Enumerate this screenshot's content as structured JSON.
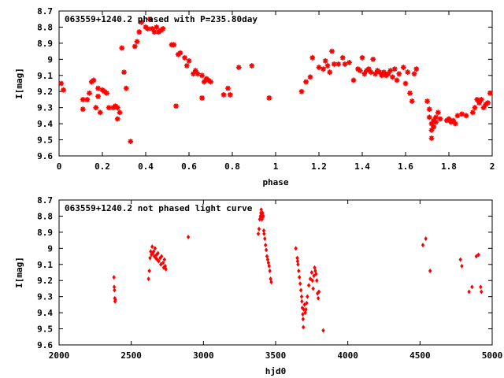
{
  "chart_data": [
    {
      "type": "scatter",
      "title": "063559+1240.2 phased with P=235.80day",
      "xlabel": "phase",
      "ylabel": "I[mag]",
      "xlim": [
        0,
        2
      ],
      "ylim": [
        8.7,
        9.6
      ],
      "y_inverted": true,
      "marker": "star",
      "color": "#ff0000",
      "xticks": [
        "0",
        "0.2",
        "0.4",
        "0.6",
        "0.8",
        "1",
        "1.2",
        "1.4",
        "1.6",
        "1.8",
        "2"
      ],
      "yticks": [
        "8.7",
        "8.8",
        "8.9",
        "9",
        "9.1",
        "9.2",
        "9.3",
        "9.4",
        "9.5",
        "9.6"
      ],
      "points": [
        [
          0.01,
          9.15
        ],
        [
          0.02,
          9.19
        ],
        [
          0.11,
          9.31
        ],
        [
          0.11,
          9.25
        ],
        [
          0.13,
          9.25
        ],
        [
          0.14,
          9.21
        ],
        [
          0.15,
          9.14
        ],
        [
          0.16,
          9.13
        ],
        [
          0.17,
          9.3
        ],
        [
          0.18,
          9.18
        ],
        [
          0.18,
          9.23
        ],
        [
          0.19,
          9.33
        ],
        [
          0.2,
          9.19
        ],
        [
          0.21,
          9.2
        ],
        [
          0.22,
          9.21
        ],
        [
          0.23,
          9.3
        ],
        [
          0.25,
          9.3
        ],
        [
          0.26,
          9.29
        ],
        [
          0.27,
          9.3
        ],
        [
          0.27,
          9.37
        ],
        [
          0.28,
          9.33
        ],
        [
          0.29,
          8.93
        ],
        [
          0.3,
          9.08
        ],
        [
          0.31,
          9.18
        ],
        [
          0.33,
          9.51
        ],
        [
          0.35,
          8.92
        ],
        [
          0.36,
          8.89
        ],
        [
          0.37,
          8.83
        ],
        [
          0.38,
          8.77
        ],
        [
          0.4,
          8.8
        ],
        [
          0.41,
          8.81
        ],
        [
          0.42,
          8.75
        ],
        [
          0.43,
          8.81
        ],
        [
          0.44,
          8.83
        ],
        [
          0.45,
          8.8
        ],
        [
          0.46,
          8.83
        ],
        [
          0.47,
          8.82
        ],
        [
          0.48,
          8.81
        ],
        [
          0.52,
          8.91
        ],
        [
          0.53,
          8.91
        ],
        [
          0.54,
          9.29
        ],
        [
          0.55,
          8.97
        ],
        [
          0.56,
          8.96
        ],
        [
          0.58,
          8.99
        ],
        [
          0.59,
          9.04
        ],
        [
          0.6,
          9.01
        ],
        [
          0.62,
          9.09
        ],
        [
          0.63,
          9.07
        ],
        [
          0.64,
          9.09
        ],
        [
          0.66,
          9.24
        ],
        [
          0.66,
          9.1
        ],
        [
          0.67,
          9.14
        ],
        [
          0.68,
          9.12
        ],
        [
          0.69,
          9.13
        ],
        [
          0.7,
          9.14
        ],
        [
          0.76,
          9.22
        ],
        [
          0.78,
          9.18
        ],
        [
          0.79,
          9.22
        ],
        [
          0.83,
          9.05
        ],
        [
          0.89,
          9.04
        ],
        [
          0.97,
          9.24
        ],
        [
          1.12,
          9.2
        ],
        [
          1.14,
          9.14
        ],
        [
          1.16,
          9.11
        ],
        [
          1.17,
          8.99
        ],
        [
          1.2,
          9.05
        ],
        [
          1.22,
          9.06
        ],
        [
          1.23,
          9.01
        ],
        [
          1.24,
          9.04
        ],
        [
          1.25,
          9.08
        ],
        [
          1.26,
          8.95
        ],
        [
          1.27,
          9.03
        ],
        [
          1.29,
          9.03
        ],
        [
          1.31,
          8.99
        ],
        [
          1.32,
          9.03
        ],
        [
          1.34,
          9.02
        ],
        [
          1.36,
          9.13
        ],
        [
          1.38,
          9.06
        ],
        [
          1.39,
          9.07
        ],
        [
          1.4,
          8.99
        ],
        [
          1.41,
          9.09
        ],
        [
          1.42,
          9.07
        ],
        [
          1.43,
          9.06
        ],
        [
          1.44,
          9.08
        ],
        [
          1.45,
          9.0
        ],
        [
          1.46,
          9.09
        ],
        [
          1.47,
          9.07
        ],
        [
          1.48,
          9.08
        ],
        [
          1.49,
          9.1
        ],
        [
          1.5,
          9.08
        ],
        [
          1.51,
          9.1
        ],
        [
          1.52,
          9.09
        ],
        [
          1.53,
          9.07
        ],
        [
          1.54,
          9.11
        ],
        [
          1.55,
          9.06
        ],
        [
          1.56,
          9.13
        ],
        [
          1.57,
          9.09
        ],
        [
          1.59,
          9.05
        ],
        [
          1.6,
          9.15
        ],
        [
          1.61,
          9.08
        ],
        [
          1.62,
          9.21
        ],
        [
          1.63,
          9.26
        ],
        [
          1.64,
          9.09
        ],
        [
          1.65,
          9.06
        ],
        [
          1.7,
          9.26
        ],
        [
          1.71,
          9.31
        ],
        [
          1.71,
          9.36
        ],
        [
          1.72,
          9.4
        ],
        [
          1.72,
          9.44
        ],
        [
          1.72,
          9.49
        ],
        [
          1.73,
          9.42
        ],
        [
          1.73,
          9.38
        ],
        [
          1.74,
          9.36
        ],
        [
          1.74,
          9.39
        ],
        [
          1.75,
          9.33
        ],
        [
          1.76,
          9.37
        ],
        [
          1.79,
          9.38
        ],
        [
          1.8,
          9.37
        ],
        [
          1.81,
          9.39
        ],
        [
          1.82,
          9.38
        ],
        [
          1.83,
          9.4
        ],
        [
          1.84,
          9.35
        ],
        [
          1.86,
          9.34
        ],
        [
          1.88,
          9.35
        ],
        [
          1.91,
          9.33
        ],
        [
          1.92,
          9.3
        ],
        [
          1.93,
          9.25
        ],
        [
          1.94,
          9.27
        ],
        [
          1.95,
          9.25
        ],
        [
          1.96,
          9.3
        ],
        [
          1.97,
          9.28
        ],
        [
          1.98,
          9.27
        ],
        [
          1.99,
          9.21
        ]
      ]
    },
    {
      "type": "scatter",
      "title": "063559+1240.2 not phased light curve",
      "xlabel": "hjd0",
      "ylabel": "I[mag]",
      "xlim": [
        2000,
        5000
      ],
      "ylim": [
        8.7,
        9.6
      ],
      "y_inverted": true,
      "marker": "diamond",
      "color": "#ff0000",
      "xticks": [
        "2000",
        "2500",
        "3000",
        "3500",
        "4000",
        "4500",
        "5000"
      ],
      "yticks": [
        "8.7",
        "8.8",
        "8.9",
        "9",
        "9.1",
        "9.2",
        "9.3",
        "9.4",
        "9.5",
        "9.6"
      ],
      "points": [
        [
          2380,
          9.18
        ],
        [
          2382,
          9.24
        ],
        [
          2384,
          9.26
        ],
        [
          2386,
          9.31
        ],
        [
          2388,
          9.33
        ],
        [
          2390,
          9.32
        ],
        [
          2620,
          9.19
        ],
        [
          2625,
          9.14
        ],
        [
          2630,
          9.06
        ],
        [
          2635,
          9.02
        ],
        [
          2640,
          9.04
        ],
        [
          2645,
          8.99
        ],
        [
          2650,
          9.03
        ],
        [
          2655,
          9.02
        ],
        [
          2660,
          9.05
        ],
        [
          2665,
          9.0
        ],
        [
          2670,
          9.06
        ],
        [
          2675,
          9.04
        ],
        [
          2680,
          9.07
        ],
        [
          2685,
          9.03
        ],
        [
          2690,
          9.08
        ],
        [
          2700,
          9.06
        ],
        [
          2705,
          9.1
        ],
        [
          2710,
          9.05
        ],
        [
          2720,
          9.09
        ],
        [
          2725,
          9.12
        ],
        [
          2730,
          9.07
        ],
        [
          2735,
          9.11
        ],
        [
          2740,
          9.13
        ],
        [
          2895,
          8.93
        ],
        [
          3380,
          8.91
        ],
        [
          3385,
          8.88
        ],
        [
          3390,
          8.82
        ],
        [
          3395,
          8.8
        ],
        [
          3398,
          8.78
        ],
        [
          3400,
          8.76
        ],
        [
          3402,
          8.79
        ],
        [
          3405,
          8.82
        ],
        [
          3408,
          8.81
        ],
        [
          3410,
          8.78
        ],
        [
          3415,
          8.8
        ],
        [
          3418,
          8.89
        ],
        [
          3420,
          8.91
        ],
        [
          3425,
          8.94
        ],
        [
          3430,
          8.98
        ],
        [
          3435,
          9.01
        ],
        [
          3440,
          9.05
        ],
        [
          3445,
          9.07
        ],
        [
          3450,
          9.09
        ],
        [
          3455,
          9.11
        ],
        [
          3460,
          9.14
        ],
        [
          3465,
          9.19
        ],
        [
          3470,
          9.21
        ],
        [
          3640,
          9.0
        ],
        [
          3650,
          9.06
        ],
        [
          3652,
          9.08
        ],
        [
          3655,
          9.1
        ],
        [
          3660,
          9.14
        ],
        [
          3665,
          9.18
        ],
        [
          3670,
          9.22
        ],
        [
          3675,
          9.26
        ],
        [
          3680,
          9.3
        ],
        [
          3682,
          9.33
        ],
        [
          3685,
          9.37
        ],
        [
          3688,
          9.41
        ],
        [
          3690,
          9.44
        ],
        [
          3692,
          9.49
        ],
        [
          3695,
          9.38
        ],
        [
          3700,
          9.35
        ],
        [
          3705,
          9.4
        ],
        [
          3710,
          9.38
        ],
        [
          3715,
          9.34
        ],
        [
          3720,
          9.3
        ],
        [
          3730,
          9.23
        ],
        [
          3740,
          9.19
        ],
        [
          3750,
          9.15
        ],
        [
          3755,
          9.2
        ],
        [
          3760,
          9.25
        ],
        [
          3765,
          9.17
        ],
        [
          3770,
          9.12
        ],
        [
          3775,
          9.14
        ],
        [
          3780,
          9.16
        ],
        [
          3785,
          9.2
        ],
        [
          3790,
          9.28
        ],
        [
          3795,
          9.31
        ],
        [
          3800,
          9.27
        ],
        [
          3830,
          9.51
        ],
        [
          4520,
          8.98
        ],
        [
          4540,
          8.94
        ],
        [
          4570,
          9.14
        ],
        [
          4780,
          9.07
        ],
        [
          4790,
          9.11
        ],
        [
          4840,
          9.27
        ],
        [
          4860,
          9.24
        ],
        [
          4890,
          9.05
        ],
        [
          4905,
          9.04
        ],
        [
          4920,
          9.24
        ],
        [
          4925,
          9.27
        ]
      ]
    }
  ]
}
